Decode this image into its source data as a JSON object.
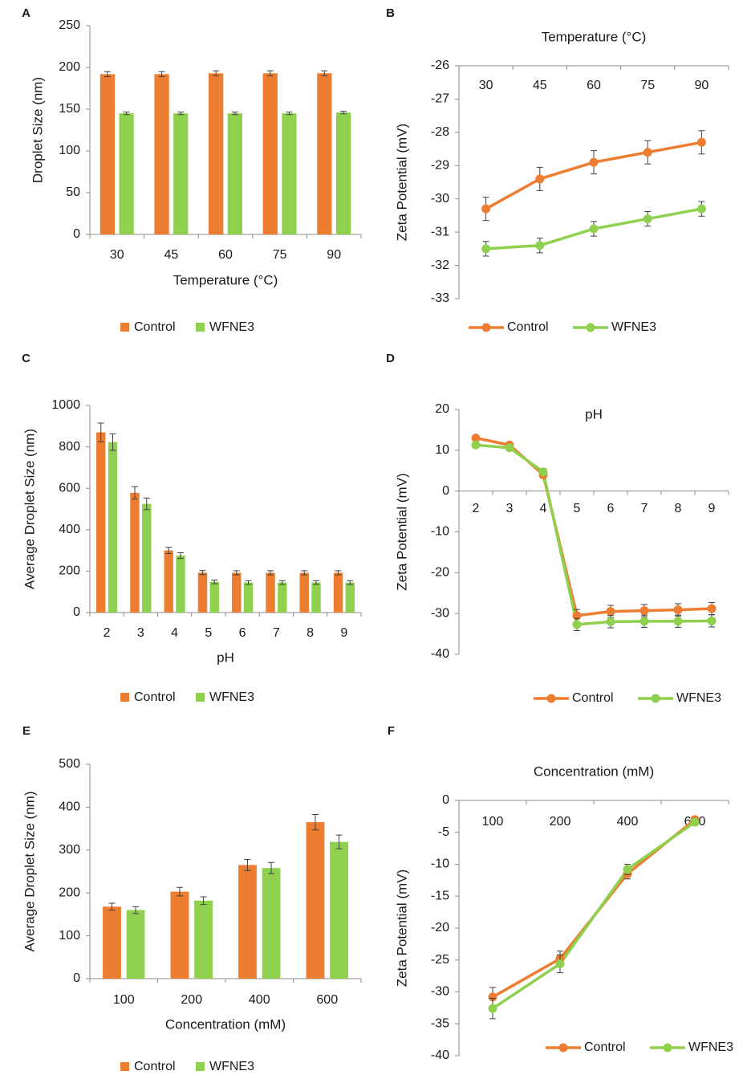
{
  "colors": {
    "control": "#ED7D31",
    "wfne3": "#8FD14F",
    "axis": "#8c8c8c",
    "errorbar": "#404040"
  },
  "chart_data": [
    {
      "id": "A",
      "panel_label": "A",
      "type": "bar",
      "title": "",
      "xlabel": "Temperature (°C)",
      "ylabel": "Droplet Size (nm)",
      "categories": [
        "30",
        "45",
        "60",
        "75",
        "90"
      ],
      "ylim": [
        0,
        250
      ],
      "yticks": [
        0,
        50,
        100,
        150,
        200,
        250
      ],
      "series": [
        {
          "name": "Control",
          "values": [
            192,
            192,
            193,
            193,
            193
          ],
          "errors": [
            3,
            3,
            3,
            3,
            3
          ]
        },
        {
          "name": "WFNE3",
          "values": [
            145,
            145,
            145,
            145,
            146
          ],
          "errors": [
            1.5,
            1.5,
            1.5,
            1.5,
            1.5
          ]
        }
      ],
      "legend": [
        "Control",
        "WFNE3"
      ],
      "legend_position": "bottom"
    },
    {
      "id": "B",
      "panel_label": "B",
      "type": "line",
      "title": "Temperature (°C)",
      "xlabel": "",
      "ylabel": "Zeta Potential (mV)",
      "categories": [
        "30",
        "45",
        "60",
        "75",
        "90"
      ],
      "ylim": [
        -33,
        -26
      ],
      "yticks": [
        -26,
        -27,
        -28,
        -29,
        -30,
        -31,
        -32,
        -33
      ],
      "series": [
        {
          "name": "Control",
          "values": [
            -30.3,
            -29.4,
            -28.9,
            -28.6,
            -28.3
          ],
          "errors": [
            0.35,
            0.35,
            0.35,
            0.35,
            0.35
          ]
        },
        {
          "name": "WFNE3",
          "values": [
            -31.5,
            -31.4,
            -30.9,
            -30.6,
            -30.3
          ],
          "errors": [
            0.22,
            0.22,
            0.22,
            0.22,
            0.22
          ]
        }
      ],
      "legend": [
        "Control",
        "WFNE3"
      ],
      "legend_position": "bottom"
    },
    {
      "id": "C",
      "panel_label": "C",
      "type": "bar",
      "title": "",
      "xlabel": "pH",
      "ylabel": "Average Droplet Size (nm)",
      "categories": [
        "2",
        "3",
        "4",
        "5",
        "6",
        "7",
        "8",
        "9"
      ],
      "ylim": [
        0,
        1000
      ],
      "yticks": [
        0,
        200,
        400,
        600,
        800,
        1000
      ],
      "series": [
        {
          "name": "Control",
          "values": [
            870,
            578,
            300,
            193,
            192,
            192,
            192,
            192
          ],
          "errors": [
            45,
            30,
            15,
            10,
            10,
            10,
            10,
            10
          ]
        },
        {
          "name": "WFNE3",
          "values": [
            823,
            525,
            275,
            148,
            145,
            145,
            145,
            145
          ],
          "errors": [
            40,
            28,
            14,
            9,
            9,
            9,
            9,
            9
          ]
        }
      ],
      "legend": [
        "Control",
        "WFNE3"
      ],
      "legend_position": "bottom"
    },
    {
      "id": "D",
      "panel_label": "D",
      "type": "line",
      "title": "pH",
      "xlabel": "",
      "ylabel": "Zeta Potential (mV)",
      "categories": [
        "2",
        "3",
        "4",
        "5",
        "6",
        "7",
        "8",
        "9"
      ],
      "ylim": [
        -40,
        20
      ],
      "yticks": [
        20,
        10,
        0,
        -10,
        -20,
        -30,
        -40
      ],
      "series": [
        {
          "name": "Control",
          "values": [
            13,
            11.3,
            4,
            -30.5,
            -29.5,
            -29.3,
            -29.1,
            -28.8
          ],
          "errors": [
            0.5,
            0.5,
            0.8,
            1.5,
            1.5,
            1.5,
            1.5,
            1.5
          ]
        },
        {
          "name": "WFNE3",
          "values": [
            11.3,
            10.6,
            4.7,
            -32.7,
            -32,
            -31.9,
            -31.9,
            -31.8
          ],
          "errors": [
            0.5,
            0.5,
            0.8,
            1.5,
            1.5,
            1.5,
            1.5,
            1.5
          ]
        }
      ],
      "legend": [
        "Control",
        "WFNE3"
      ],
      "legend_position": "bottom"
    },
    {
      "id": "E",
      "panel_label": "E",
      "type": "bar",
      "title": "",
      "xlabel": "Concentration (mM)",
      "ylabel": "Average Droplet Size (nm)",
      "categories": [
        "100",
        "200",
        "400",
        "600"
      ],
      "ylim": [
        0,
        500
      ],
      "yticks": [
        0,
        100,
        200,
        300,
        400,
        500
      ],
      "series": [
        {
          "name": "Control",
          "values": [
            168,
            203,
            265,
            365
          ],
          "errors": [
            8,
            10,
            13,
            18
          ]
        },
        {
          "name": "WFNE3",
          "values": [
            160,
            182,
            258,
            319
          ],
          "errors": [
            8,
            9,
            13,
            16
          ]
        }
      ],
      "legend": [
        "Control",
        "WFNE3"
      ],
      "legend_position": "bottom"
    },
    {
      "id": "F",
      "panel_label": "F",
      "type": "line",
      "title": "Concentration (mM)",
      "xlabel": "",
      "ylabel": "Zeta Potential (mV)",
      "categories": [
        "100",
        "200",
        "400",
        "600"
      ],
      "ylim": [
        -40,
        0
      ],
      "yticks": [
        0,
        -5,
        -10,
        -15,
        -20,
        -25,
        -30,
        -35,
        -40
      ],
      "series": [
        {
          "name": "Control",
          "values": [
            -30.8,
            -24.8,
            -11.5,
            -3
          ],
          "errors": [
            1.5,
            1.2,
            0.8,
            0.5
          ]
        },
        {
          "name": "WFNE3",
          "values": [
            -32.6,
            -25.6,
            -10.8,
            -3.4
          ],
          "errors": [
            1.6,
            1.4,
            0.8,
            0.5
          ]
        }
      ],
      "legend": [
        "Control",
        "WFNE3"
      ],
      "legend_position": "bottom"
    }
  ]
}
